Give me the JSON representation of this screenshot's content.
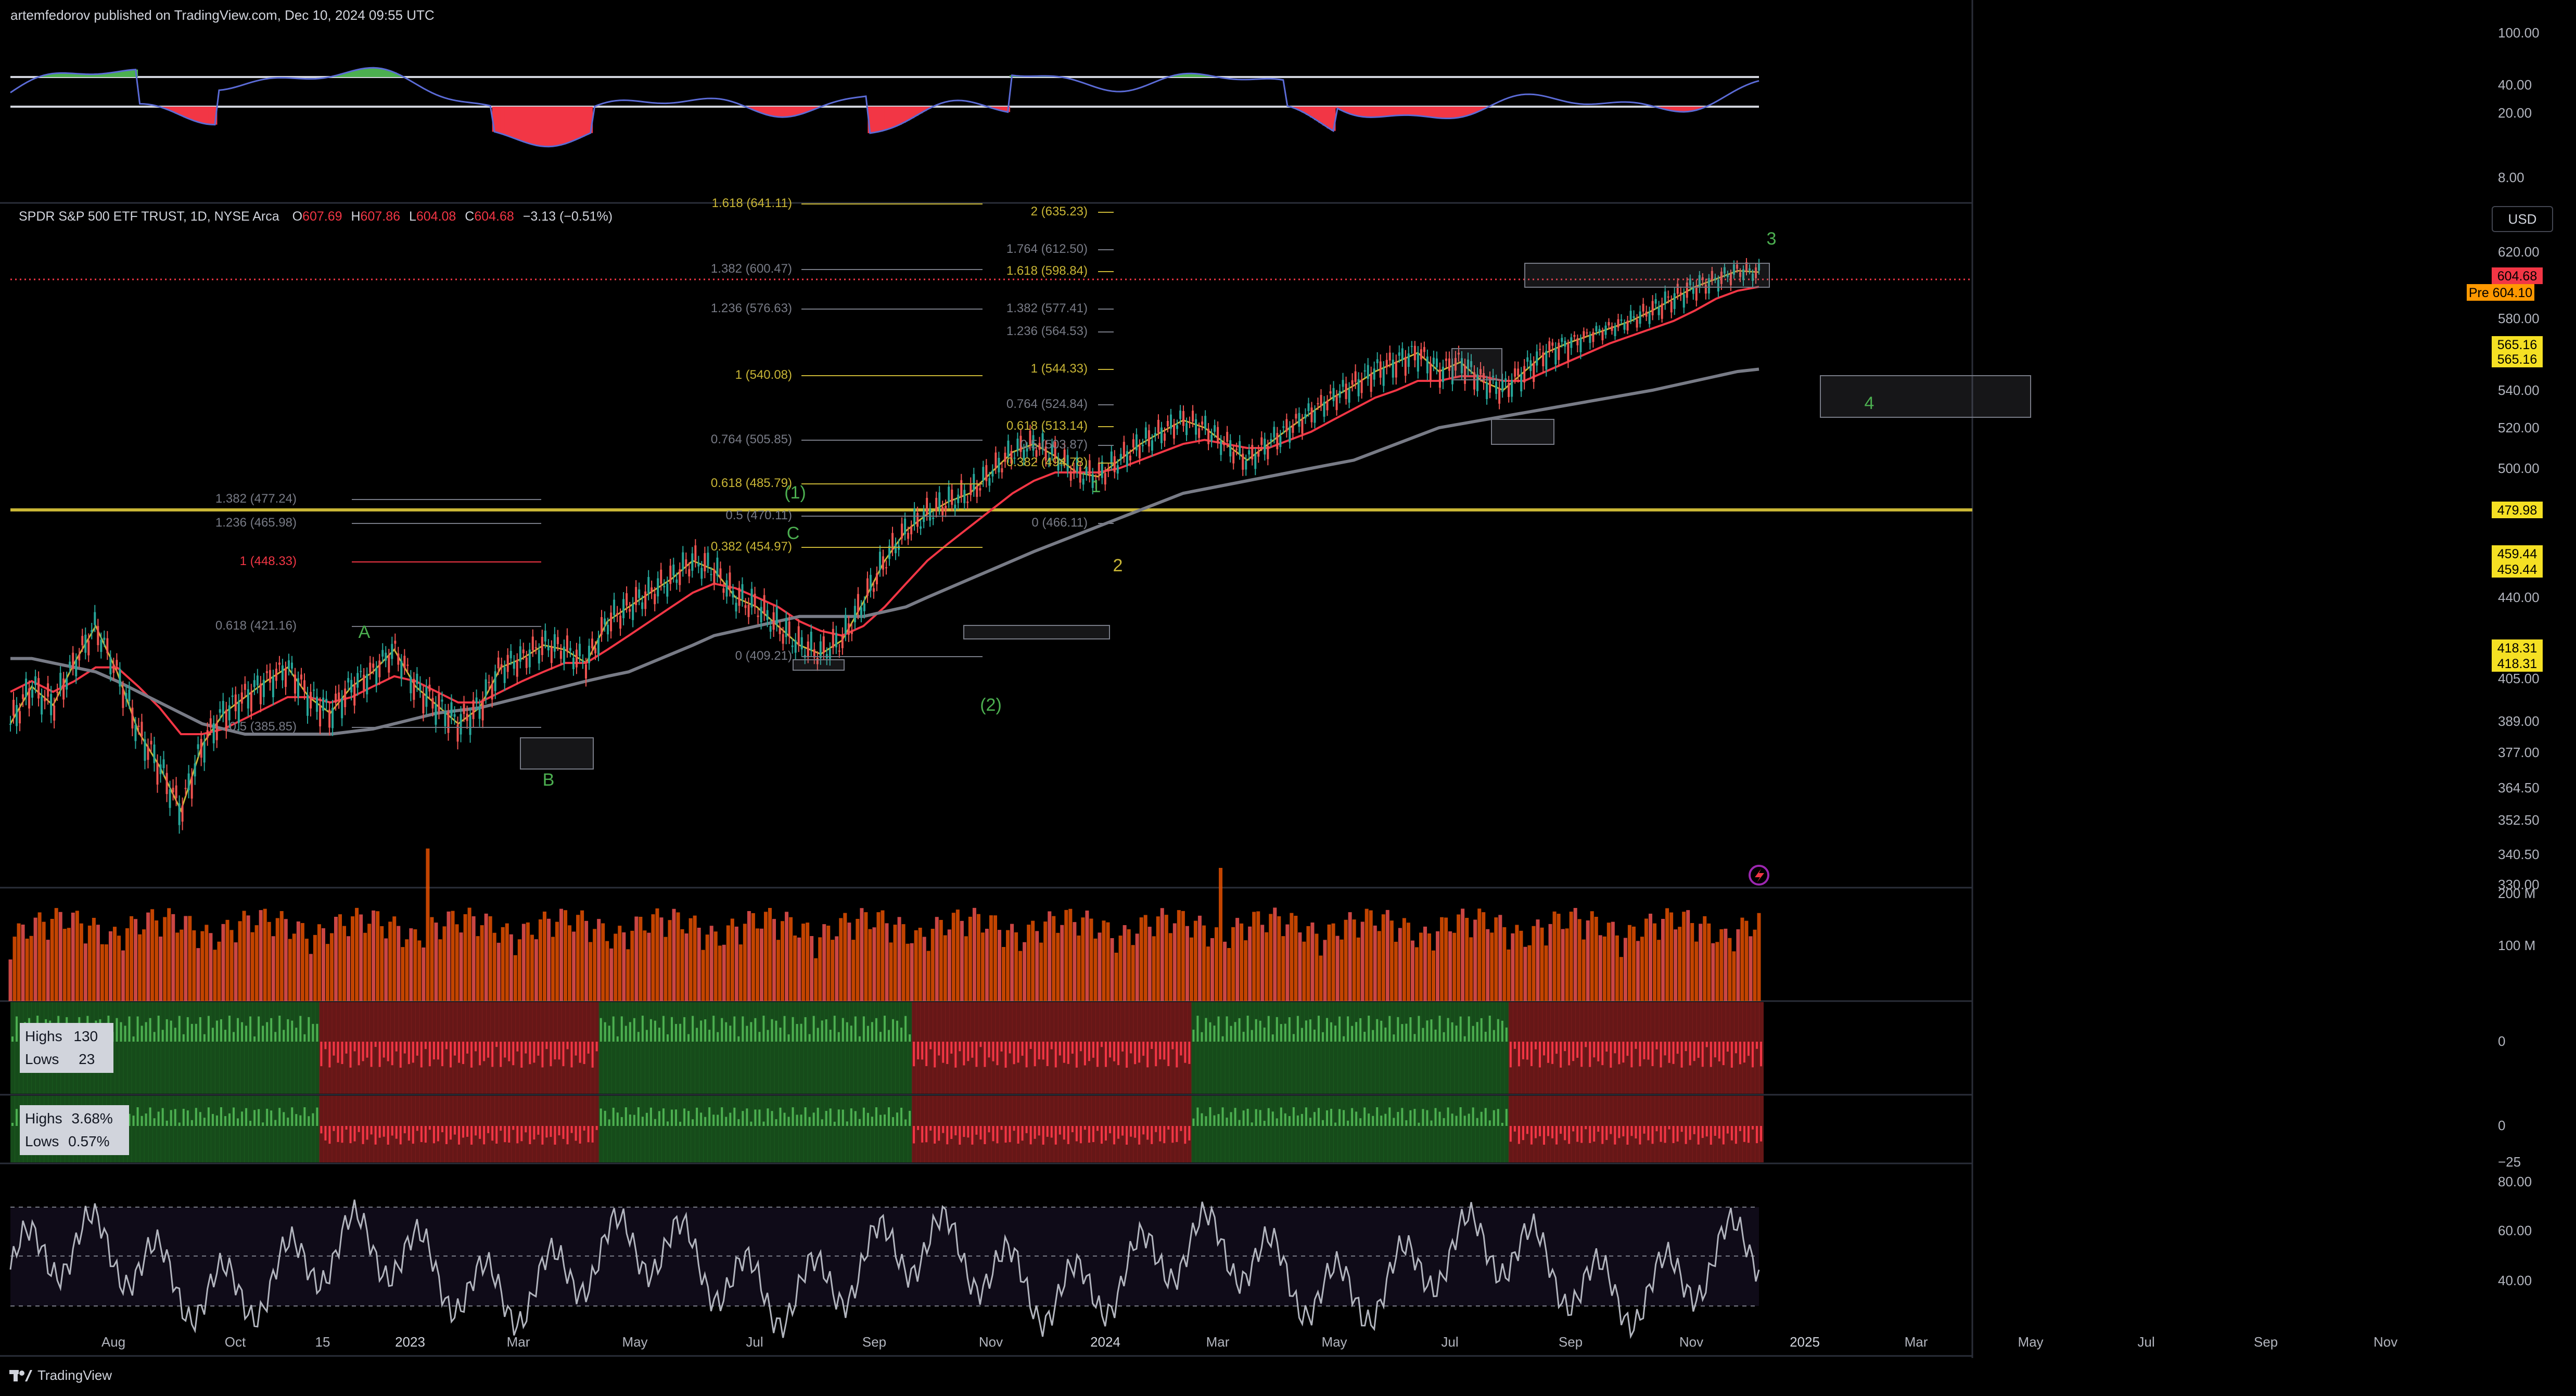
{
  "header": {
    "published": "artemfedorov published on TradingView.com, Dec 10, 2024 09:55 UTC"
  },
  "symbol": {
    "name": "SPDR S&P 500 ETF TRUST, 1D, NYSE Arca",
    "open_label": "O",
    "open": "607.69",
    "high_label": "H",
    "high": "607.86",
    "low_label": "L",
    "low": "604.08",
    "close_label": "C",
    "close": "604.68",
    "change": "−3.13 (−0.51%)"
  },
  "currency": "USD",
  "footer": {
    "brand": "TradingView"
  },
  "colors": {
    "green": "#4caf50",
    "red": "#f23645",
    "yellow": "#c9b636",
    "grey": "#787b86",
    "price_tag": "#f23645",
    "pre_tag": "#ff9800"
  },
  "chart_data": [
    {
      "type": "area",
      "name": "oscillator-top",
      "y_ticks": [
        "100.00",
        "40.00",
        "20.00",
        "8.00"
      ]
    },
    {
      "type": "line",
      "name": "price",
      "y_ticks": [
        "620.00",
        "600.00",
        "580.00",
        "560.00",
        "540.00",
        "520.00",
        "500.00",
        "480.00",
        "460.00",
        "440.00",
        "420.00",
        "405.00",
        "389.00",
        "377.00",
        "364.50",
        "352.50",
        "340.50",
        "330.00"
      ],
      "x_ticks": [
        "Aug",
        "Oct",
        "15",
        "2023",
        "Mar",
        "May",
        "Jul",
        "Sep",
        "Nov",
        "2024",
        "Mar",
        "May",
        "Jul",
        "Sep",
        "Nov",
        "2025",
        "Mar",
        "May",
        "Jul",
        "Sep",
        "Nov"
      ],
      "price_tags": [
        {
          "value": "604.68",
          "kind": "last"
        },
        {
          "label": "Pre",
          "value": "604.10",
          "kind": "pre"
        },
        {
          "value": "565.16",
          "kind": "level"
        },
        {
          "value": "565.16",
          "kind": "level"
        },
        {
          "value": "479.98",
          "kind": "level"
        },
        {
          "value": "459.44",
          "kind": "level"
        },
        {
          "value": "459.44",
          "kind": "level"
        },
        {
          "value": "418.31",
          "kind": "level"
        },
        {
          "value": "418.31",
          "kind": "level"
        }
      ],
      "series": [
        {
          "name": "",
          "values": [
            388,
            402,
            395,
            412,
            428,
            408,
            385,
            372,
            356,
            380,
            392,
            398,
            404,
            410,
            398,
            392,
            402,
            408,
            418,
            402,
            395,
            388,
            394,
            410,
            414,
            420,
            418,
            412,
            430,
            436,
            442,
            448,
            456,
            452,
            440,
            436,
            428,
            420,
            416,
            422,
            438,
            456,
            470,
            478,
            484,
            488,
            498,
            508,
            512,
            506,
            498,
            496,
            504,
            512,
            518,
            524,
            520,
            512,
            504,
            512,
            520,
            528,
            536,
            542,
            548,
            552,
            556,
            548,
            552,
            544,
            540,
            548,
            556,
            560,
            566,
            572,
            578,
            584,
            590,
            596,
            600,
            606,
            605
          ]
        },
        {
          "name": "",
          "values": [
            400,
            404,
            400,
            404,
            410,
            410,
            402,
            394,
            384,
            384,
            386,
            390,
            394,
            398,
            398,
            396,
            398,
            402,
            406,
            404,
            400,
            396,
            396,
            400,
            404,
            408,
            412,
            412,
            418,
            424,
            430,
            436,
            442,
            446,
            444,
            440,
            436,
            430,
            426,
            424,
            428,
            436,
            446,
            456,
            464,
            472,
            480,
            488,
            494,
            498,
            498,
            498,
            500,
            504,
            508,
            512,
            514,
            512,
            510,
            510,
            514,
            518,
            524,
            530,
            536,
            540,
            544,
            544,
            546,
            546,
            544,
            544,
            548,
            552,
            556,
            560,
            566,
            572,
            578,
            584,
            590,
            594,
            596
          ]
        },
        {
          "name": "",
          "values": [
            414,
            414,
            412,
            410,
            408,
            404,
            400,
            396,
            392,
            388,
            386,
            384,
            384,
            384,
            384,
            384,
            385,
            386,
            388,
            390,
            392,
            393,
            394,
            396,
            398,
            400,
            402,
            404,
            406,
            408,
            412,
            416,
            420,
            424,
            426,
            428,
            430,
            432,
            432,
            432,
            432,
            434,
            436,
            440,
            444,
            448,
            452,
            456,
            460,
            464,
            468,
            472,
            476,
            480,
            484,
            488,
            490,
            492,
            494,
            496,
            498,
            500,
            502,
            504,
            508,
            512,
            516,
            520,
            522,
            524,
            526,
            528,
            530,
            532,
            534,
            536,
            538,
            540,
            542,
            544,
            546,
            548,
            549
          ]
        }
      ],
      "annotations": {
        "fib_left": [
          "1.382 (477.24)",
          "1.236 (465.98)",
          "1 (448.33)",
          "0.618 (421.16)",
          "0.5 (385.85)"
        ],
        "fib_mid": [
          "1.618 (641.11)",
          "1.382 (600.47)",
          "1.236 (576.63)",
          "1 (540.08)",
          "0.764 (505.85)",
          "0.618 (485.79)",
          "0.5 (470.11)",
          "0.382 (454.97)",
          "0 (409.21)"
        ],
        "fib_right": [
          "2 (635.23)",
          "1.764 (612.50)",
          "1.618 (598.84)",
          "1.382 (577.41)",
          "1.236 (564.53)",
          "1 (544.33)",
          "0.764 (524.84)",
          "0.618 (513.14)",
          "0.5 (503.87)",
          "0.382 (494.78)",
          "0 (466.11)"
        ],
        "waves": [
          "A",
          "B",
          "C",
          "(1)",
          "(2)",
          "1",
          "2",
          "3",
          "4"
        ]
      }
    },
    {
      "type": "bar",
      "name": "volume",
      "y_ticks": [
        "200 M",
        "100 M"
      ]
    },
    {
      "type": "bar",
      "name": "highs-lows-count",
      "y_ticks": [
        "0"
      ],
      "legend": [
        {
          "label": "Highs",
          "value": "130"
        },
        {
          "label": "Lows",
          "value": "23"
        }
      ]
    },
    {
      "type": "bar",
      "name": "highs-lows-percent",
      "y_ticks": [
        "0",
        "−25"
      ],
      "legend": [
        {
          "label": "Highs",
          "value": "3.68%"
        },
        {
          "label": "Lows",
          "value": "0.57%"
        }
      ]
    },
    {
      "type": "line",
      "name": "rsi",
      "y_ticks": [
        "80.00",
        "60.00",
        "40.00"
      ]
    }
  ]
}
